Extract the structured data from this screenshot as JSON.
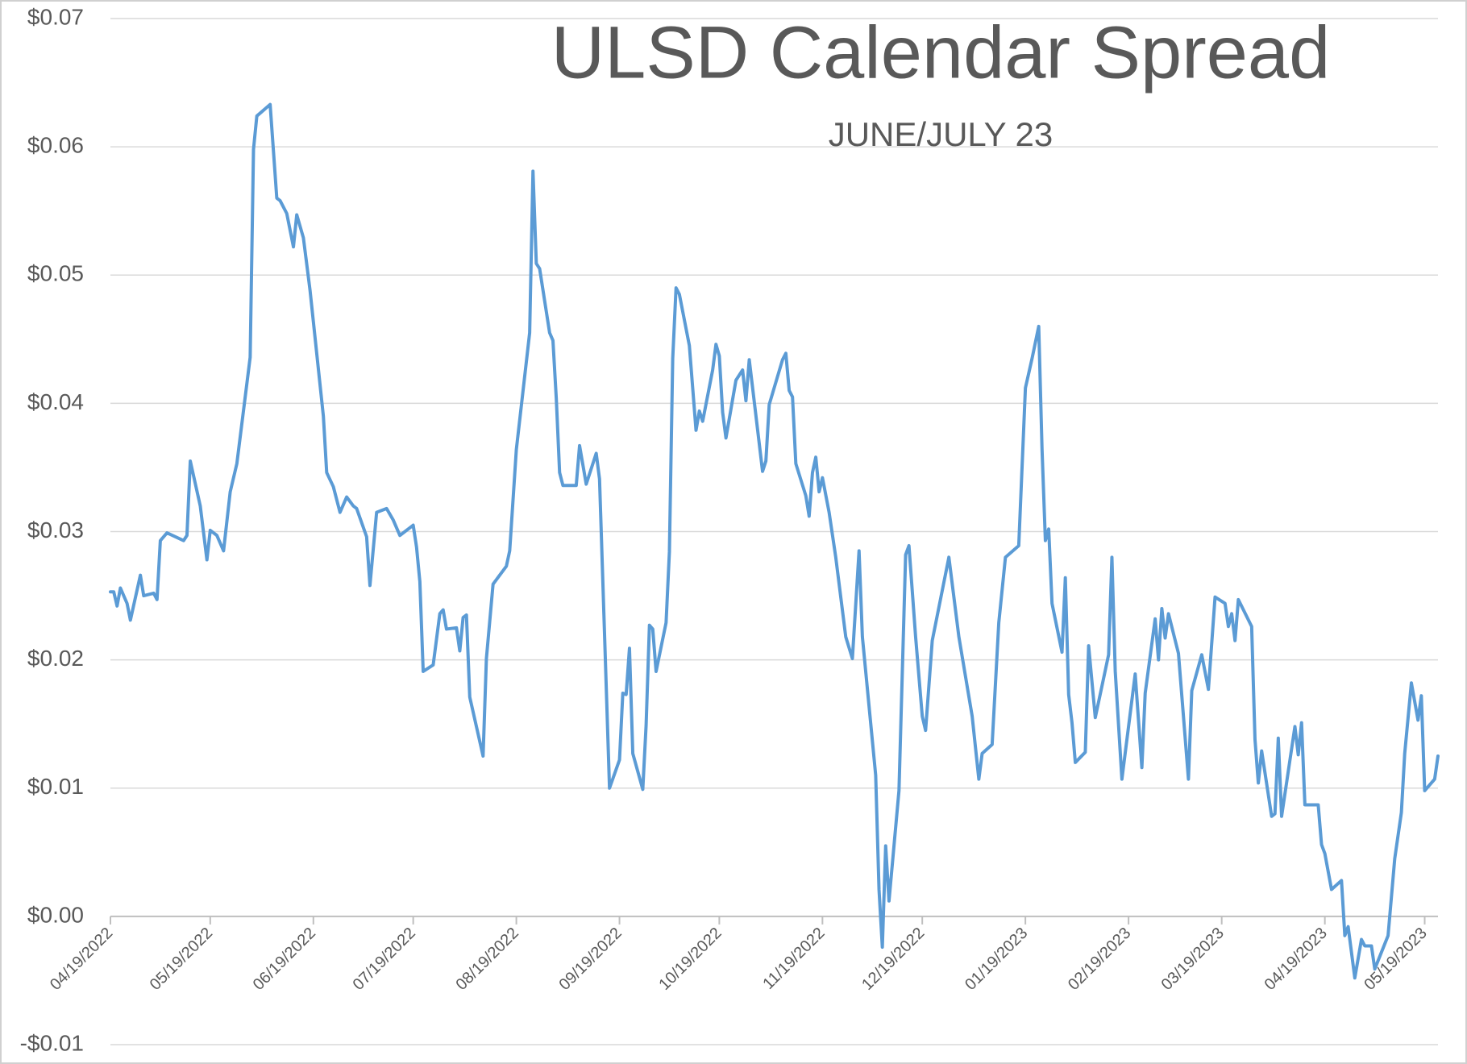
{
  "chart_data": {
    "type": "line",
    "title": "ULSD Calendar Spread",
    "subtitle": "JUNE/JULY 23",
    "color": "#5b9bd5",
    "grid": true,
    "xlim": [
      "04/19/2022",
      "05/23/2023"
    ],
    "xticks": [
      "04/19/2022",
      "05/19/2022",
      "06/19/2022",
      "07/19/2022",
      "08/19/2022",
      "09/19/2022",
      "10/19/2022",
      "11/19/2022",
      "12/19/2022",
      "01/19/2023",
      "02/19/2023",
      "03/19/2023",
      "04/19/2023",
      "05/19/2023"
    ],
    "ylim": [
      -0.01,
      0.07
    ],
    "yticks": [
      {
        "value": 0.07,
        "label": "$0.07"
      },
      {
        "value": 0.06,
        "label": "$0.06"
      },
      {
        "value": 0.05,
        "label": "$0.05"
      },
      {
        "value": 0.04,
        "label": "$0.04"
      },
      {
        "value": 0.03,
        "label": "$0.03"
      },
      {
        "value": 0.02,
        "label": "$0.02"
      },
      {
        "value": 0.01,
        "label": "$0.01"
      },
      {
        "value": 0,
        "label": "$0.00"
      },
      {
        "value": -0.01,
        "label": "-$0.01"
      }
    ],
    "x": [
      "04/19/2022",
      "04/20/2022",
      "04/21/2022",
      "04/22/2022",
      "04/24/2022",
      "04/25/2022",
      "04/28/2022",
      "04/29/2022",
      "05/02/2022",
      "05/03/2022",
      "05/04/2022",
      "05/06/2022",
      "05/11/2022",
      "05/12/2022",
      "05/13/2022",
      "05/16/2022",
      "05/18/2022",
      "05/19/2022",
      "05/21/2022",
      "05/23/2022",
      "05/25/2022",
      "05/27/2022",
      "05/31/2022",
      "06/01/2022",
      "06/02/2022",
      "06/06/2022",
      "06/08/2022",
      "06/09/2022",
      "06/11/2022",
      "06/13/2022",
      "06/14/2022",
      "06/16/2022",
      "06/18/2022",
      "06/22/2022",
      "06/23/2022",
      "06/25/2022",
      "06/27/2022",
      "06/29/2022",
      "07/01/2022",
      "07/02/2022",
      "07/05/2022",
      "07/06/2022",
      "07/08/2022",
      "07/11/2022",
      "07/13/2022",
      "07/15/2022",
      "07/19/2022",
      "07/20/2022",
      "07/21/2022",
      "07/22/2022",
      "07/25/2022",
      "07/27/2022",
      "07/28/2022",
      "07/29/2022",
      "08/01/2022",
      "08/02/2022",
      "08/03/2022",
      "08/04/2022",
      "08/05/2022",
      "08/09/2022",
      "08/10/2022",
      "08/12/2022",
      "08/16/2022",
      "08/17/2022",
      "08/19/2022",
      "08/23/2022",
      "08/24/2022",
      "08/25/2022",
      "08/26/2022",
      "08/29/2022",
      "08/30/2022",
      "08/31/2022",
      "09/01/2022",
      "09/02/2022",
      "09/06/2022",
      "09/07/2022",
      "09/09/2022",
      "09/12/2022",
      "09/13/2022",
      "09/16/2022",
      "09/19/2022",
      "09/20/2022",
      "09/21/2022",
      "09/22/2022",
      "09/23/2022",
      "09/26/2022",
      "09/27/2022",
      "09/28/2022",
      "09/29/2022",
      "09/30/2022",
      "10/03/2022",
      "10/04/2022",
      "10/05/2022",
      "10/06/2022",
      "10/07/2022",
      "10/10/2022",
      "10/12/2022",
      "10/13/2022",
      "10/14/2022",
      "10/17/2022",
      "10/18/2022",
      "10/19/2022",
      "10/20/2022",
      "10/21/2022",
      "10/24/2022",
      "10/26/2022",
      "10/27/2022",
      "10/28/2022",
      "11/01/2022",
      "11/02/2022",
      "11/03/2022",
      "11/07/2022",
      "11/08/2022",
      "11/09/2022",
      "11/10/2022",
      "11/11/2022",
      "11/14/2022",
      "11/15/2022",
      "11/16/2022",
      "11/17/2022",
      "11/18/2022",
      "11/19/2022",
      "11/21/2022",
      "11/23/2022",
      "11/26/2022",
      "11/28/2022",
      "11/30/2022",
      "12/01/2022",
      "12/05/2022",
      "12/06/2022",
      "12/07/2022",
      "12/08/2022",
      "12/09/2022",
      "12/12/2022",
      "12/14/2022",
      "12/15/2022",
      "12/17/2022",
      "12/19/2022",
      "12/20/2022",
      "12/22/2022",
      "12/27/2022",
      "12/30/2022",
      "01/03/2023",
      "01/05/2023",
      "01/06/2023",
      "01/09/2023",
      "01/11/2023",
      "01/13/2023",
      "01/17/2023",
      "01/19/2023",
      "01/21/2023",
      "01/23/2023",
      "01/24/2023",
      "01/25/2023",
      "01/26/2023",
      "01/27/2023",
      "01/30/2023",
      "01/31/2023",
      "02/01/2023",
      "02/02/2023",
      "02/03/2023",
      "02/06/2023",
      "02/07/2023",
      "02/09/2023",
      "02/13/2023",
      "02/14/2023",
      "02/15/2023",
      "02/17/2023",
      "02/21/2023",
      "02/23/2023",
      "02/24/2023",
      "02/27/2023",
      "02/28/2023",
      "03/01/2023",
      "03/02/2023",
      "03/03/2023",
      "03/06/2023",
      "03/09/2023",
      "03/10/2023",
      "03/13/2023",
      "03/15/2023",
      "03/17/2023",
      "03/20/2023",
      "03/21/2023",
      "03/22/2023",
      "03/23/2023",
      "03/24/2023",
      "03/28/2023",
      "03/29/2023",
      "03/30/2023",
      "03/31/2023",
      "04/03/2023",
      "04/04/2023",
      "04/05/2023",
      "04/06/2023",
      "04/10/2023",
      "04/11/2023",
      "04/12/2023",
      "04/13/2023",
      "04/17/2023",
      "04/18/2023",
      "04/19/2023",
      "04/21/2023",
      "04/24/2023",
      "04/25/2023",
      "04/26/2023",
      "04/28/2023",
      "04/30/2023",
      "05/01/2023",
      "05/03/2023",
      "05/04/2023",
      "05/08/2023",
      "05/10/2023",
      "05/12/2023",
      "05/13/2023",
      "05/15/2023",
      "05/17/2023",
      "05/18/2023",
      "05/19/2023",
      "05/22/2023",
      "05/23/2023"
    ],
    "values": [
      0.0253,
      0.0253,
      0.0242,
      0.0256,
      0.0244,
      0.0231,
      0.0266,
      0.025,
      0.0252,
      0.0247,
      0.0293,
      0.0299,
      0.0293,
      0.0297,
      0.0355,
      0.032,
      0.0278,
      0.0301,
      0.0297,
      0.0285,
      0.0331,
      0.0353,
      0.0436,
      0.0598,
      0.0624,
      0.0633,
      0.056,
      0.0558,
      0.0548,
      0.0522,
      0.0547,
      0.0529,
      0.0488,
      0.039,
      0.0346,
      0.0335,
      0.0315,
      0.0327,
      0.032,
      0.0318,
      0.0296,
      0.0258,
      0.0315,
      0.0318,
      0.0309,
      0.0297,
      0.0305,
      0.0288,
      0.0261,
      0.0191,
      0.0196,
      0.0236,
      0.0239,
      0.0224,
      0.0225,
      0.0207,
      0.0233,
      0.0235,
      0.0171,
      0.0125,
      0.0201,
      0.0259,
      0.0273,
      0.0285,
      0.0364,
      0.0455,
      0.0581,
      0.0509,
      0.0505,
      0.0455,
      0.0449,
      0.0404,
      0.0346,
      0.0336,
      0.0336,
      0.0367,
      0.0337,
      0.0361,
      0.0341,
      0.01,
      0.0122,
      0.0174,
      0.0173,
      0.0209,
      0.0127,
      0.0099,
      0.0149,
      0.0227,
      0.0224,
      0.0191,
      0.0229,
      0.0284,
      0.0435,
      0.049,
      0.0485,
      0.0445,
      0.0379,
      0.0394,
      0.0386,
      0.0426,
      0.0446,
      0.0437,
      0.0393,
      0.0373,
      0.0418,
      0.0426,
      0.0402,
      0.0434,
      0.0347,
      0.0355,
      0.0399,
      0.0434,
      0.0439,
      0.041,
      0.0405,
      0.0353,
      0.0328,
      0.0312,
      0.0346,
      0.0358,
      0.0331,
      0.0342,
      0.0315,
      0.028,
      0.0218,
      0.0201,
      0.0285,
      0.0218,
      0.011,
      0.0021,
      -0.0024,
      0.0055,
      0.0012,
      0.0098,
      0.0282,
      0.0289,
      0.0218,
      0.0156,
      0.0145,
      0.0215,
      0.028,
      0.0218,
      0.0156,
      0.0107,
      0.0127,
      0.0134,
      0.0229,
      0.028,
      0.0289,
      0.0412,
      0.0435,
      0.046,
      0.0364,
      0.0293,
      0.0302,
      0.0244,
      0.0206,
      0.0264,
      0.0173,
      0.0151,
      0.012,
      0.0128,
      0.0211,
      0.0155,
      0.0204,
      0.028,
      0.0191,
      0.0107,
      0.0189,
      0.0116,
      0.0174,
      0.0232,
      0.02,
      0.024,
      0.0217,
      0.0236,
      0.0205,
      0.0107,
      0.0176,
      0.0204,
      0.0177,
      0.0249,
      0.0244,
      0.0226,
      0.0236,
      0.0215,
      0.0247,
      0.0226,
      0.0138,
      0.0104,
      0.0129,
      0.0078,
      0.008,
      0.0139,
      0.0078,
      0.0148,
      0.0126,
      0.0151,
      0.0087,
      0.0087,
      0.0056,
      0.0049,
      0.0021,
      0.0028,
      -0.0015,
      -0.0008,
      -0.0048,
      -0.0018,
      -0.0023,
      -0.0023,
      -0.0041,
      -0.0015,
      0.0045,
      0.0081,
      0.0127,
      0.0182,
      0.0153,
      0.0172,
      0.0098,
      0.0107,
      0.0125
    ]
  }
}
